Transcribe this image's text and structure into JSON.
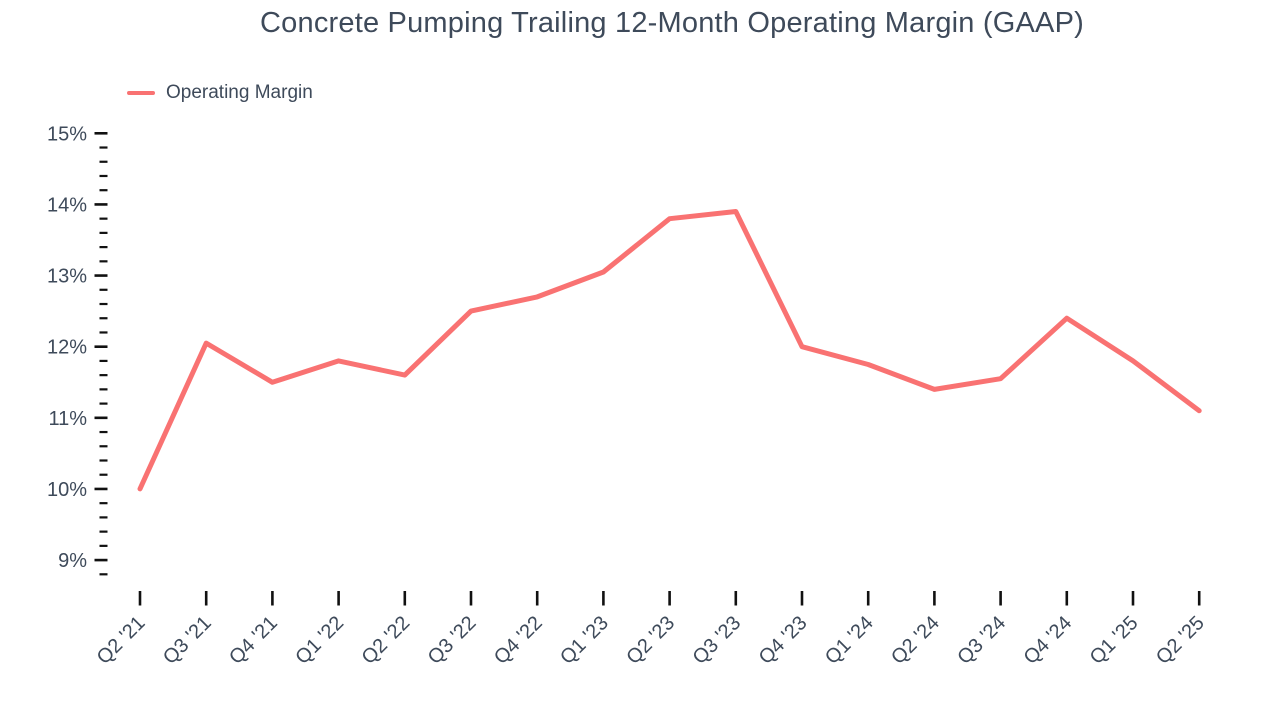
{
  "title": "Concrete Pumping Trailing 12-Month Operating Margin (GAAP)",
  "legend": {
    "label": "Operating Margin"
  },
  "colors": {
    "line": "#F97272",
    "text": "#3E4A5A",
    "tick": "#111111",
    "background": "#FFFFFF"
  },
  "chart_data": {
    "type": "line",
    "title": "Concrete Pumping Trailing 12-Month Operating Margin (GAAP)",
    "xlabel": "",
    "ylabel": "",
    "categories": [
      "Q2 '21",
      "Q3 '21",
      "Q4 '21",
      "Q1 '22",
      "Q2 '22",
      "Q3 '22",
      "Q4 '22",
      "Q1 '23",
      "Q2 '23",
      "Q3 '23",
      "Q4 '23",
      "Q1 '24",
      "Q2 '24",
      "Q3 '24",
      "Q4 '24",
      "Q1 '25",
      "Q2 '25"
    ],
    "series": [
      {
        "name": "Operating Margin",
        "values": [
          10.0,
          12.05,
          11.5,
          11.8,
          11.6,
          12.5,
          12.7,
          13.05,
          13.8,
          13.9,
          12.0,
          11.75,
          11.4,
          11.55,
          12.4,
          11.8,
          11.1
        ]
      }
    ],
    "y_axis": {
      "min": 8.8,
      "max": 15,
      "major_step": 1,
      "minor_step": 0.2,
      "unit": "%",
      "tick_labels": [
        "15%",
        "14%",
        "13%",
        "12%",
        "11%",
        "10%",
        "9%"
      ]
    },
    "ylim": [
      8.8,
      15
    ],
    "grid": false,
    "legend_position": "top-left"
  }
}
